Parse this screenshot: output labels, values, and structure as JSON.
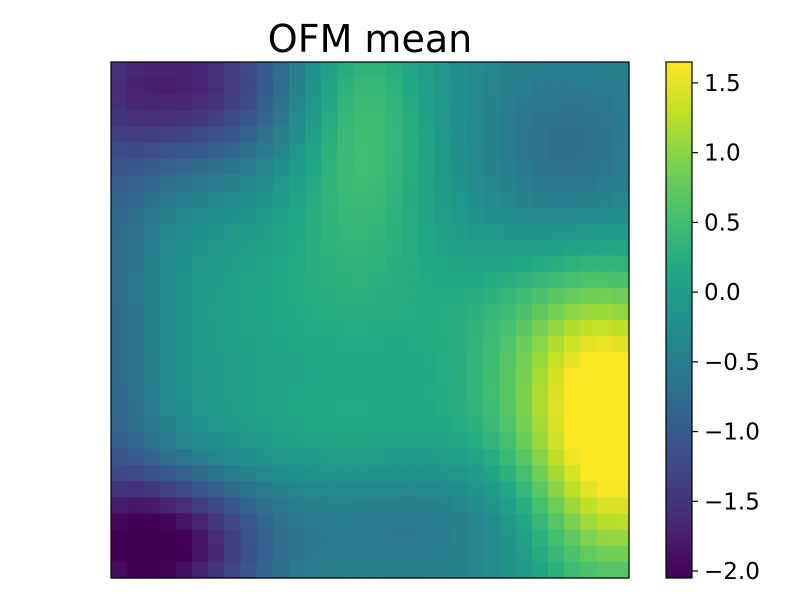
{
  "chart_data": {
    "type": "heatmap",
    "title": "OFM mean",
    "xlabel": "",
    "ylabel": "",
    "grid_rows": 32,
    "grid_cols": 32,
    "x_ticks_shown": false,
    "y_ticks_shown": false,
    "colormap": "viridis",
    "colorbar": {
      "location": "right",
      "vmin": -2.05,
      "vmax": 1.65,
      "ticks": [
        {
          "value": 1.5,
          "label": "1.5"
        },
        {
          "value": 1.0,
          "label": "1.0"
        },
        {
          "value": 0.5,
          "label": "0.5"
        },
        {
          "value": 0.0,
          "label": "0.0"
        },
        {
          "value": -0.5,
          "label": "−0.5"
        },
        {
          "value": -1.0,
          "label": "−1.0"
        },
        {
          "value": -1.5,
          "label": "−1.5"
        },
        {
          "value": -2.0,
          "label": "−2.0"
        }
      ]
    },
    "field_anchors": {
      "base": -0.3,
      "features": [
        {
          "kind": "gauss",
          "x": 0.14,
          "y": 0.04,
          "sx": 0.16,
          "sy": 0.12,
          "amp": -1.4
        },
        {
          "kind": "gauss",
          "x": 0.1,
          "y": 0.94,
          "sx": 0.13,
          "sy": 0.1,
          "amp": -1.8
        },
        {
          "kind": "gauss",
          "x": 0.0,
          "y": 0.55,
          "sx": 0.07,
          "sy": 0.4,
          "amp": -0.6
        },
        {
          "kind": "gauss",
          "x": 0.97,
          "y": 0.75,
          "sx": 0.12,
          "sy": 0.2,
          "amp": 1.95
        },
        {
          "kind": "gauss",
          "x": 0.9,
          "y": 0.55,
          "sx": 0.16,
          "sy": 0.16,
          "amp": 0.7
        },
        {
          "kind": "gauss",
          "x": 0.48,
          "y": 0.1,
          "sx": 0.1,
          "sy": 0.18,
          "amp": 0.85
        },
        {
          "kind": "gauss",
          "x": 0.42,
          "y": 0.47,
          "sx": 0.25,
          "sy": 0.17,
          "amp": 0.45
        },
        {
          "kind": "gauss",
          "x": 0.45,
          "y": 0.72,
          "sx": 0.22,
          "sy": 0.08,
          "amp": 0.3
        },
        {
          "kind": "gauss",
          "x": 0.6,
          "y": 0.9,
          "sx": 0.18,
          "sy": 0.08,
          "amp": -0.3
        },
        {
          "kind": "gauss",
          "x": 0.88,
          "y": 0.2,
          "sx": 0.12,
          "sy": 0.14,
          "amp": -0.5
        }
      ]
    }
  }
}
